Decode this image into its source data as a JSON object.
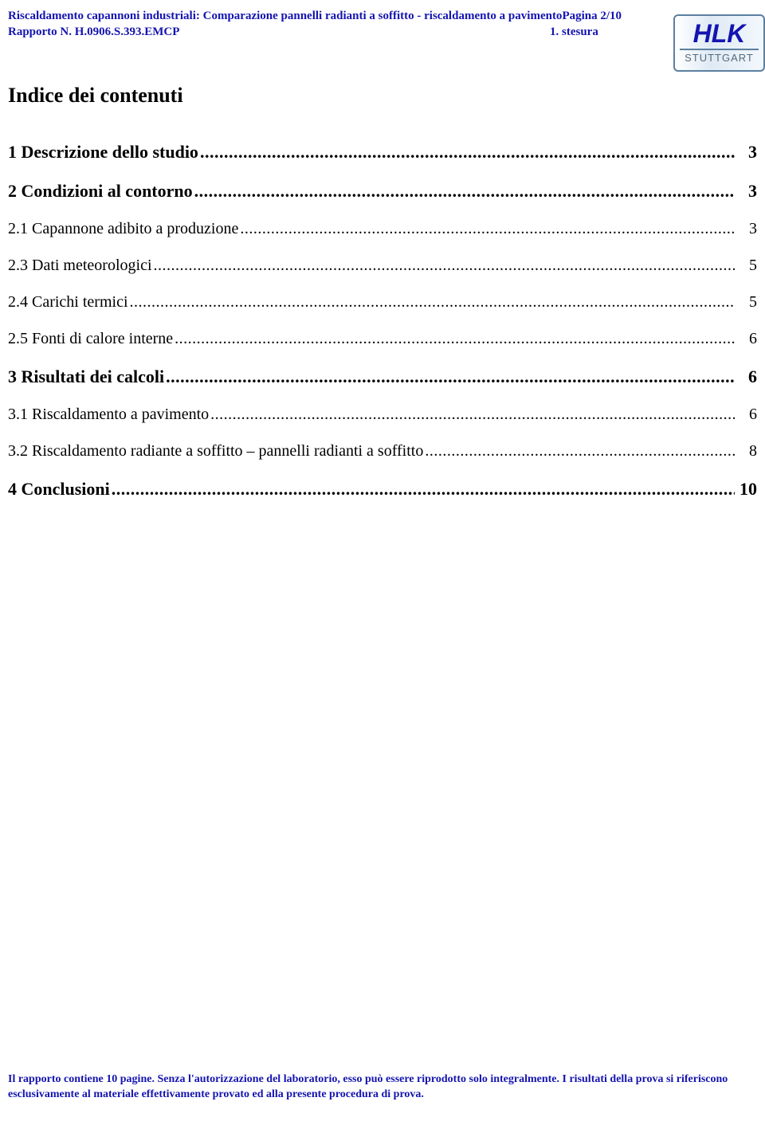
{
  "header": {
    "title_line1": "Riscaldamento capannoni industriali: Comparazione pannelli radianti a soffitto  - riscaldamento a pavimento",
    "title_line2": "Rapporto  N. H.0906.S.393.EMCP",
    "page_label": "Pagina 2/10",
    "version_label": "1. stesura"
  },
  "logo": {
    "brand": "HLK",
    "sub": "STUTTGART"
  },
  "toc": {
    "title": "Indice dei contenuti",
    "entries": [
      {
        "label": "1 Descrizione dello studio",
        "page": "3",
        "bold": true
      },
      {
        "label": "2 Condizioni al contorno",
        "page": "3",
        "bold": true
      },
      {
        "label": "2.1 Capannone adibito a produzione",
        "page": "3",
        "bold": false
      },
      {
        "label": "2.3 Dati meteorologici",
        "page": "5",
        "bold": false
      },
      {
        "label": "2.4 Carichi termici",
        "page": "5",
        "bold": false
      },
      {
        "label": "2.5 Fonti di calore interne",
        "page": "6",
        "bold": false
      },
      {
        "label": "3 Risultati dei calcoli",
        "page": "6",
        "bold": true
      },
      {
        "label": "3.1 Riscaldamento a pavimento",
        "page": "6",
        "bold": false
      },
      {
        "label": "3.2 Riscaldamento radiante a soffitto – pannelli radianti a soffitto",
        "page": "8",
        "bold": false
      },
      {
        "label": "4 Conclusioni",
        "page": "10",
        "bold": true
      }
    ]
  },
  "footer": {
    "text": "Il rapporto contiene 10 pagine. Senza l'autorizzazione del laboratorio, esso può essere riprodotto solo integralmente. I risultati della prova si riferiscono esclusivamente al materiale effettivamente provato ed alla presente procedura di prova."
  },
  "dots": "...................................................................................................................................................................................................................................................................................................................................................."
}
